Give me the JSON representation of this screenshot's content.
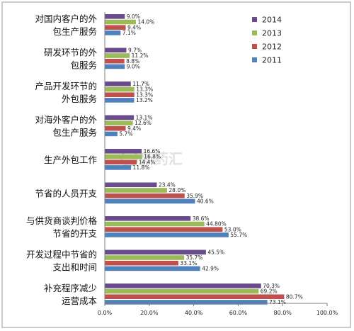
{
  "chart_data": {
    "type": "bar",
    "orientation": "horizontal",
    "categories": [
      [
        "对国内客户的外",
        "包生产服务"
      ],
      [
        "研发环节的外",
        "包服务"
      ],
      [
        "产品开发环节的",
        "外包服务"
      ],
      [
        "对海外客户的外",
        "包生产服务"
      ],
      [
        "生产外包工作"
      ],
      [
        "节省的人员开支"
      ],
      [
        "与供货商谈判价格",
        "节省的开支"
      ],
      [
        "开发过程中节省的",
        "支出和时间"
      ],
      [
        "补充程序减少",
        "运营成本"
      ]
    ],
    "series": [
      {
        "name": "2014",
        "color": "#6a4c8c",
        "values": [
          9.0,
          9.7,
          11.7,
          13.1,
          16.6,
          23.4,
          38.6,
          45.5,
          70.3
        ],
        "labels": [
          "9.0%",
          "9.7%",
          "11.7%",
          "13.1%",
          "16.6%",
          "23.4%",
          "38.6%",
          "45.5%",
          "70.3%"
        ]
      },
      {
        "name": "2013",
        "color": "#9bbb59",
        "values": [
          14.0,
          11.2,
          13.3,
          12.6,
          16.8,
          28.0,
          44.8,
          35.7,
          69.2
        ],
        "labels": [
          "14.0%",
          "11.2%",
          "13.3%",
          "12.6%",
          "16.8%",
          "28.0%",
          "44.80%",
          "35.7%",
          "69.2%"
        ]
      },
      {
        "name": "2012",
        "color": "#c0504d",
        "values": [
          9.4,
          8.8,
          13.3,
          9.4,
          14.4,
          35.9,
          53.0,
          33.1,
          80.7
        ],
        "labels": [
          "9.4%",
          "8.8%",
          "13.3%",
          "9.4%",
          "14.4%",
          "35.9%",
          "53.0%",
          "33.1%",
          "80.7%"
        ]
      },
      {
        "name": "2011",
        "color": "#4f81bd",
        "values": [
          7.1,
          9.0,
          13.2,
          5.7,
          11.8,
          40.6,
          55.7,
          42.9,
          73.1
        ],
        "labels": [
          "7.1%",
          "9.0%",
          "13.2%",
          "5.7%",
          "11.8%",
          "40.6%",
          "55.7%",
          "42.9%",
          "73.1%"
        ]
      }
    ],
    "legend_order": [
      "2014",
      "2013",
      "2012",
      "2011"
    ],
    "xlim": [
      0,
      100
    ],
    "xticks": [
      0,
      20,
      40,
      60,
      80,
      100
    ],
    "xtick_labels": [
      "0.0%",
      "20.0%",
      "40.0%",
      "60.0%",
      "80.0%",
      "100.0%"
    ],
    "grid": false,
    "legend_position": "top-right",
    "watermark": "新药汇"
  }
}
